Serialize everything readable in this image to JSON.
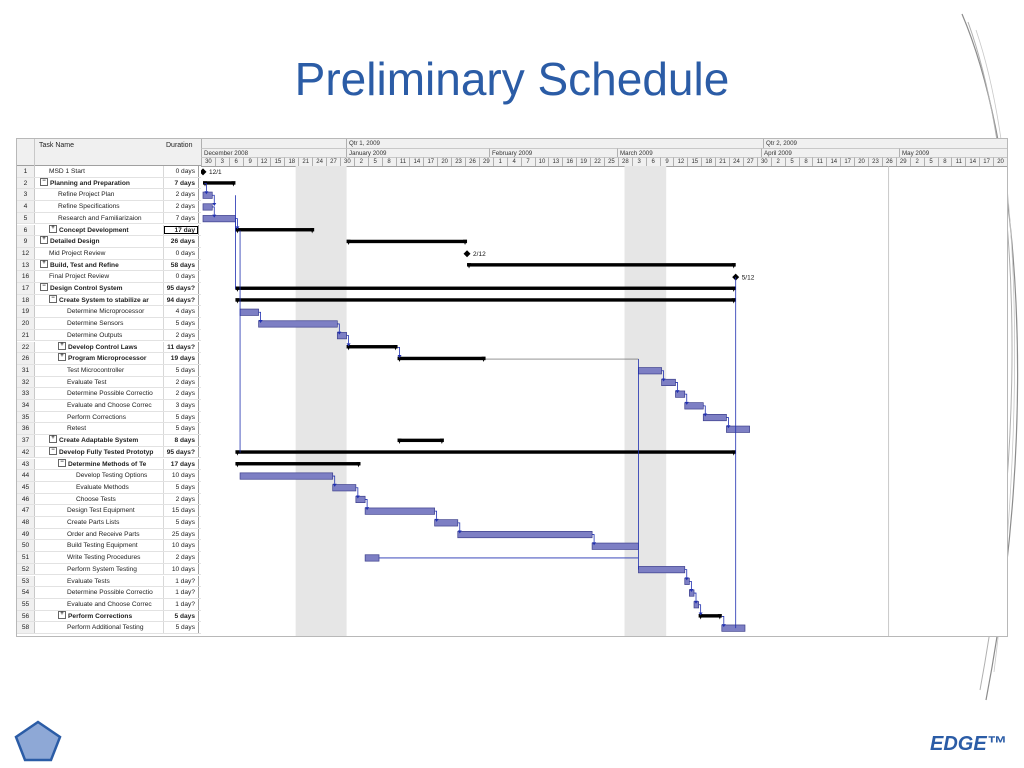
{
  "slide": {
    "title": "Preliminary Schedule",
    "brand": "EDGE™",
    "pentagon_icon": "pentagon-icon",
    "accent_color": "#2b5ca6"
  },
  "table": {
    "headers": {
      "task_name": "Task Name",
      "duration": "Duration"
    },
    "rows": [
      {
        "id": "1",
        "name": "MSD 1 Start",
        "duration": "0 days",
        "indent": 1,
        "bold": false,
        "box": ""
      },
      {
        "id": "2",
        "name": "Planning and Preparation",
        "duration": "7 days",
        "indent": 0,
        "bold": true,
        "box": "−"
      },
      {
        "id": "3",
        "name": "Refine Project Plan",
        "duration": "2 days",
        "indent": 2,
        "bold": false,
        "box": ""
      },
      {
        "id": "4",
        "name": "Refine Specifications",
        "duration": "2 days",
        "indent": 2,
        "bold": false,
        "box": ""
      },
      {
        "id": "5",
        "name": "Research and Familiarizaion",
        "duration": "7 days",
        "indent": 2,
        "bold": false,
        "box": ""
      },
      {
        "id": "6",
        "name": "Concept Development",
        "duration": "17 day",
        "indent": 1,
        "bold": true,
        "box": "+"
      },
      {
        "id": "9",
        "name": "Detailed Design",
        "duration": "26 days",
        "indent": 0,
        "bold": true,
        "box": "+"
      },
      {
        "id": "12",
        "name": "Mid Project Review",
        "duration": "0 days",
        "indent": 1,
        "bold": false,
        "box": ""
      },
      {
        "id": "13",
        "name": "Build, Test and Refine",
        "duration": "58 days",
        "indent": 0,
        "bold": true,
        "box": "+"
      },
      {
        "id": "16",
        "name": "Final Project Review",
        "duration": "0 days",
        "indent": 1,
        "bold": false,
        "box": ""
      },
      {
        "id": "17",
        "name": "Design Control System",
        "duration": "95 days?",
        "indent": 0,
        "bold": true,
        "box": "−"
      },
      {
        "id": "18",
        "name": "Create System to stabilize ar",
        "duration": "94 days?",
        "indent": 1,
        "bold": true,
        "box": "−"
      },
      {
        "id": "19",
        "name": "Determine Microprocessor",
        "duration": "4 days",
        "indent": 3,
        "bold": false,
        "box": ""
      },
      {
        "id": "20",
        "name": "Determine Sensors",
        "duration": "5 days",
        "indent": 3,
        "bold": false,
        "box": ""
      },
      {
        "id": "21",
        "name": "Determine Outputs",
        "duration": "2 days",
        "indent": 3,
        "bold": false,
        "box": ""
      },
      {
        "id": "22",
        "name": "Develop Control Laws",
        "duration": "11 days?",
        "indent": 2,
        "bold": true,
        "box": "+"
      },
      {
        "id": "26",
        "name": "Program Microprocessor",
        "duration": "19 days",
        "indent": 2,
        "bold": true,
        "box": "+"
      },
      {
        "id": "31",
        "name": "Test Microcontroller",
        "duration": "5 days",
        "indent": 3,
        "bold": false,
        "box": ""
      },
      {
        "id": "32",
        "name": "Evaluate Test",
        "duration": "2 days",
        "indent": 3,
        "bold": false,
        "box": ""
      },
      {
        "id": "33",
        "name": "Determine Possible Correctio",
        "duration": "2 days",
        "indent": 3,
        "bold": false,
        "box": ""
      },
      {
        "id": "34",
        "name": "Evaluate and Choose Correc",
        "duration": "3 days",
        "indent": 3,
        "bold": false,
        "box": ""
      },
      {
        "id": "35",
        "name": "Perform Corrections",
        "duration": "5 days",
        "indent": 3,
        "bold": false,
        "box": ""
      },
      {
        "id": "36",
        "name": "Retest",
        "duration": "5 days",
        "indent": 3,
        "bold": false,
        "box": ""
      },
      {
        "id": "37",
        "name": "Create Adaptable System",
        "duration": "8 days",
        "indent": 1,
        "bold": true,
        "box": "+"
      },
      {
        "id": "42",
        "name": "Develop Fully Tested Prototyp",
        "duration": "95 days?",
        "indent": 1,
        "bold": true,
        "box": "−"
      },
      {
        "id": "43",
        "name": "Determine Methods of Te",
        "duration": "17 days",
        "indent": 2,
        "bold": true,
        "box": "−"
      },
      {
        "id": "44",
        "name": "Develop Testing Options",
        "duration": "10 days",
        "indent": 4,
        "bold": false,
        "box": ""
      },
      {
        "id": "45",
        "name": "Evaluate Methods",
        "duration": "5 days",
        "indent": 4,
        "bold": false,
        "box": ""
      },
      {
        "id": "46",
        "name": "Choose Tests",
        "duration": "2 days",
        "indent": 4,
        "bold": false,
        "box": ""
      },
      {
        "id": "47",
        "name": "Design Test Equipment",
        "duration": "15 days",
        "indent": 3,
        "bold": false,
        "box": ""
      },
      {
        "id": "48",
        "name": "Create Parts Lists",
        "duration": "5 days",
        "indent": 3,
        "bold": false,
        "box": ""
      },
      {
        "id": "49",
        "name": "Order and Receive Parts",
        "duration": "25 days",
        "indent": 3,
        "bold": false,
        "box": ""
      },
      {
        "id": "50",
        "name": "Build Testing Equipment",
        "duration": "10 days",
        "indent": 3,
        "bold": false,
        "box": ""
      },
      {
        "id": "51",
        "name": "Write Testing Procedures",
        "duration": "2 days",
        "indent": 3,
        "bold": false,
        "box": ""
      },
      {
        "id": "52",
        "name": "Perform System Testing",
        "duration": "10 days",
        "indent": 3,
        "bold": false,
        "box": ""
      },
      {
        "id": "53",
        "name": "Evaluate Tests",
        "duration": "1 day?",
        "indent": 3,
        "bold": false,
        "box": ""
      },
      {
        "id": "54",
        "name": "Determine Possible Correctio",
        "duration": "1 day?",
        "indent": 3,
        "bold": false,
        "box": ""
      },
      {
        "id": "55",
        "name": "Evaluate and Choose Correc",
        "duration": "1 day?",
        "indent": 3,
        "bold": false,
        "box": ""
      },
      {
        "id": "56",
        "name": "Perform Corrections",
        "duration": "5 days",
        "indent": 2,
        "bold": true,
        "box": "+"
      },
      {
        "id": "58",
        "name": "Perform Additional Testing",
        "duration": "5 days",
        "indent": 3,
        "bold": false,
        "box": ""
      }
    ]
  },
  "timescale": {
    "quarters": [
      "Qtr 1, 2009",
      "Qtr 2, 2009"
    ],
    "months": [
      "December 2008",
      "January 2009",
      "February 2009",
      "March 2009",
      "April 2009",
      "May 2009"
    ],
    "days": [
      "30",
      "3",
      "6",
      "9",
      "12",
      "15",
      "18",
      "21",
      "24",
      "27",
      "30",
      "2",
      "5",
      "8",
      "11",
      "14",
      "17",
      "20",
      "23",
      "26",
      "29",
      "1",
      "4",
      "7",
      "10",
      "13",
      "16",
      "19",
      "22",
      "25",
      "28",
      "3",
      "6",
      "9",
      "12",
      "15",
      "18",
      "21",
      "24",
      "27",
      "30",
      "2",
      "5",
      "8",
      "11",
      "14",
      "17",
      "20",
      "23",
      "26",
      "29",
      "2",
      "5",
      "8",
      "11",
      "14",
      "17",
      "20"
    ]
  },
  "milestones": {
    "row1": "12/1",
    "row12": "2/12",
    "row16": "5/12"
  },
  "gantt_bars": [
    {
      "row": 1,
      "type": "milestone",
      "start": 0
    },
    {
      "row": 2,
      "type": "summary",
      "start": 0,
      "end": 7
    },
    {
      "row": 3,
      "type": "task",
      "start": 0,
      "end": 2
    },
    {
      "row": 4,
      "type": "task",
      "start": 0,
      "end": 2
    },
    {
      "row": 5,
      "type": "task",
      "start": 0,
      "end": 7
    },
    {
      "row": 6,
      "type": "summary",
      "start": 7,
      "end": 24
    },
    {
      "row": 7,
      "type": "summary",
      "start": 31,
      "end": 57
    },
    {
      "row": 8,
      "type": "milestone",
      "start": 57
    },
    {
      "row": 9,
      "type": "summary",
      "start": 57,
      "end": 115
    },
    {
      "row": 10,
      "type": "milestone",
      "start": 115
    },
    {
      "row": 11,
      "type": "summary",
      "start": 7,
      "end": 115
    },
    {
      "row": 12,
      "type": "summary",
      "start": 7,
      "end": 115
    },
    {
      "row": 13,
      "type": "task",
      "start": 8,
      "end": 12
    },
    {
      "row": 14,
      "type": "task",
      "start": 12,
      "end": 29
    },
    {
      "row": 15,
      "type": "task",
      "start": 29,
      "end": 31
    },
    {
      "row": 16,
      "type": "summary",
      "start": 31,
      "end": 42
    },
    {
      "row": 17,
      "type": "summary",
      "start": 42,
      "end": 61
    },
    {
      "row": 18,
      "type": "task",
      "start": 94,
      "end": 99
    },
    {
      "row": 19,
      "type": "task",
      "start": 99,
      "end": 102
    },
    {
      "row": 20,
      "type": "task",
      "start": 102,
      "end": 104
    },
    {
      "row": 21,
      "type": "task",
      "start": 104,
      "end": 108
    },
    {
      "row": 22,
      "type": "task",
      "start": 108,
      "end": 113
    },
    {
      "row": 23,
      "type": "task",
      "start": 113,
      "end": 118
    },
    {
      "row": 24,
      "type": "summary",
      "start": 42,
      "end": 52
    },
    {
      "row": 25,
      "type": "summary",
      "start": 7,
      "end": 115
    },
    {
      "row": 26,
      "type": "summary",
      "start": 7,
      "end": 34
    },
    {
      "row": 27,
      "type": "task",
      "start": 8,
      "end": 28
    },
    {
      "row": 28,
      "type": "task",
      "start": 28,
      "end": 33
    },
    {
      "row": 29,
      "type": "task",
      "start": 33,
      "end": 35
    },
    {
      "row": 30,
      "type": "task",
      "start": 35,
      "end": 50
    },
    {
      "row": 31,
      "type": "task",
      "start": 50,
      "end": 55
    },
    {
      "row": 32,
      "type": "task",
      "start": 55,
      "end": 84
    },
    {
      "row": 33,
      "type": "task",
      "start": 84,
      "end": 94
    },
    {
      "row": 34,
      "type": "task",
      "start": 35,
      "end": 38
    },
    {
      "row": 35,
      "type": "task",
      "start": 94,
      "end": 104
    },
    {
      "row": 36,
      "type": "task",
      "start": 104,
      "end": 105
    },
    {
      "row": 37,
      "type": "task",
      "start": 105,
      "end": 106
    },
    {
      "row": 38,
      "type": "task",
      "start": 106,
      "end": 107
    },
    {
      "row": 39,
      "type": "summary",
      "start": 107,
      "end": 112
    },
    {
      "row": 40,
      "type": "task",
      "start": 112,
      "end": 117
    }
  ],
  "colors": {
    "task_fill": "#7d7fc4",
    "task_stroke": "#3c3f8c",
    "summary": "#000000",
    "link": "#1f2fb0",
    "nonworking": "#e6e6e6",
    "title": "#2b5ca6"
  }
}
